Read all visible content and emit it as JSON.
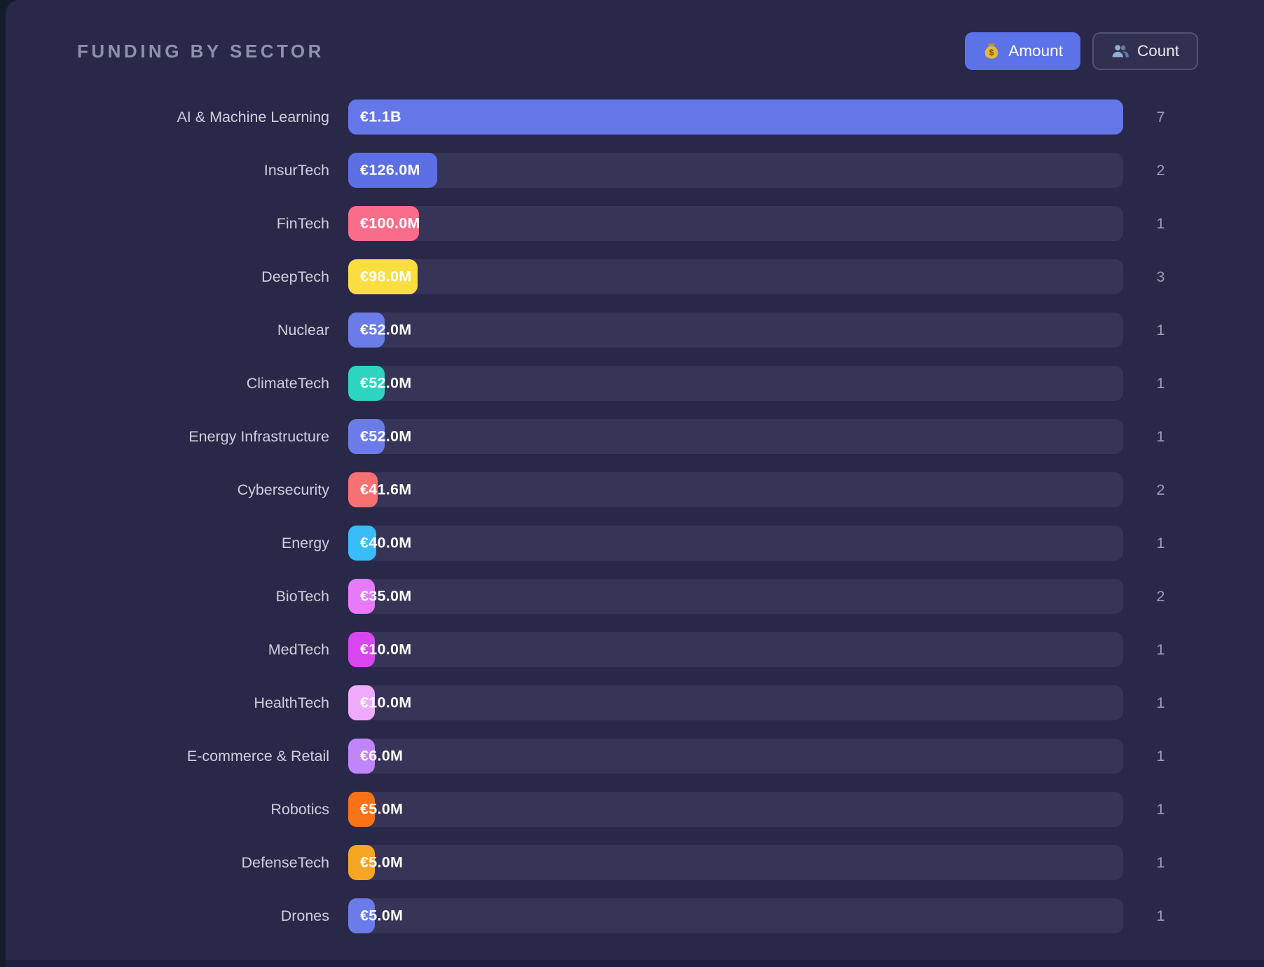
{
  "header": {
    "title": "FUNDING BY SECTOR",
    "view_toggle": {
      "amount_label": "Amount",
      "count_label": "Count",
      "active": "Amount",
      "amount_icon": "money-bag-icon",
      "count_icon": "users-icon"
    }
  },
  "colors": {
    "page_edge": "#141c2c",
    "panel_bg": "#2a2849",
    "bar_track": "#363457",
    "active_button": "#5b72e8",
    "title_text": "#8d92ac",
    "label_text": "#ccd0dd",
    "count_text": "#9b9fb6",
    "value_text": "#ffffff"
  },
  "chart_data": {
    "type": "bar",
    "orientation": "horizontal",
    "title": "FUNDING BY SECTOR",
    "unit": "EUR millions",
    "x_max": 1100,
    "grid": false,
    "legend": false,
    "categories": [
      "AI & Machine Learning",
      "InsurTech",
      "FinTech",
      "DeepTech",
      "Nuclear",
      "ClimateTech",
      "Energy Infrastructure",
      "Cybersecurity",
      "Energy",
      "BioTech",
      "MedTech",
      "HealthTech",
      "E-commerce & Retail",
      "Robotics",
      "DefenseTech",
      "Drones"
    ],
    "series": [
      {
        "name": "Funding amount (EUR millions)",
        "values": [
          1100,
          126,
          100,
          98,
          52,
          52,
          52,
          41.6,
          40,
          35,
          10,
          10,
          6,
          5,
          5,
          5
        ]
      },
      {
        "name": "Deal count",
        "values": [
          7,
          2,
          1,
          3,
          1,
          1,
          1,
          2,
          1,
          2,
          1,
          1,
          1,
          1,
          1,
          1
        ]
      }
    ],
    "rows": [
      {
        "sector": "AI & Machine Learning",
        "value_m": 1100,
        "value_label": "€1.1B",
        "count": 7,
        "color": "#6577e8"
      },
      {
        "sector": "InsurTech",
        "value_m": 126,
        "value_label": "€126.0M",
        "count": 2,
        "color": "#5d6fe4"
      },
      {
        "sector": "FinTech",
        "value_m": 100,
        "value_label": "€100.0M",
        "count": 1,
        "color": "#fa6d8a"
      },
      {
        "sector": "DeepTech",
        "value_m": 98,
        "value_label": "€98.0M",
        "count": 3,
        "color": "#fade3f"
      },
      {
        "sector": "Nuclear",
        "value_m": 52,
        "value_label": "€52.0M",
        "count": 1,
        "color": "#6b7ce9"
      },
      {
        "sector": "ClimateTech",
        "value_m": 52,
        "value_label": "€52.0M",
        "count": 1,
        "color": "#2dd4bf"
      },
      {
        "sector": "Energy Infrastructure",
        "value_m": 52,
        "value_label": "€52.0M",
        "count": 1,
        "color": "#6b7ce9"
      },
      {
        "sector": "Cybersecurity",
        "value_m": 41.6,
        "value_label": "€41.6M",
        "count": 2,
        "color": "#f87171"
      },
      {
        "sector": "Energy",
        "value_m": 40,
        "value_label": "€40.0M",
        "count": 1,
        "color": "#38bdf8"
      },
      {
        "sector": "BioTech",
        "value_m": 35,
        "value_label": "€35.0M",
        "count": 2,
        "color": "#e879f9"
      },
      {
        "sector": "MedTech",
        "value_m": 10,
        "value_label": "€10.0M",
        "count": 1,
        "color": "#d946ef"
      },
      {
        "sector": "HealthTech",
        "value_m": 10,
        "value_label": "€10.0M",
        "count": 1,
        "color": "#f0abfc"
      },
      {
        "sector": "E-commerce & Retail",
        "value_m": 6,
        "value_label": "€6.0M",
        "count": 1,
        "color": "#c084fc"
      },
      {
        "sector": "Robotics",
        "value_m": 5,
        "value_label": "€5.0M",
        "count": 1,
        "color": "#f97316"
      },
      {
        "sector": "DefenseTech",
        "value_m": 5,
        "value_label": "€5.0M",
        "count": 1,
        "color": "#f5a623"
      },
      {
        "sector": "Drones",
        "value_m": 5,
        "value_label": "€5.0M",
        "count": 1,
        "color": "#6b7ce9"
      }
    ]
  }
}
